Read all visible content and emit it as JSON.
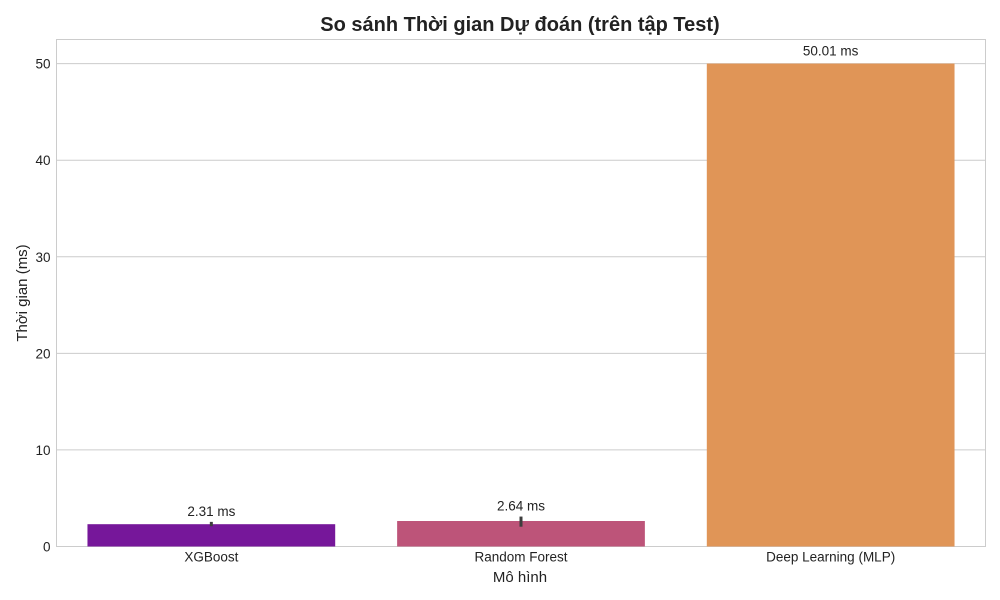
{
  "chart_data": {
    "type": "bar",
    "title": "So sánh Thời gian Dự đoán (trên tập Test)",
    "xlabel": "Mô hình",
    "ylabel": "Thời gian (ms)",
    "categories": [
      "XGBoost",
      "Random Forest",
      "Deep Learning (MLP)"
    ],
    "values": [
      2.31,
      2.64,
      50.01
    ],
    "data_labels": [
      "2.31 ms",
      "2.64 ms",
      "50.01 ms"
    ],
    "error_bars": [
      [
        2.1,
        2.55
      ],
      [
        2.05,
        3.1
      ],
      null
    ],
    "colors": [
      "#76179a",
      "#bd5479",
      "#e09557"
    ],
    "ylim": [
      0,
      52.5
    ],
    "yticks": [
      0,
      10,
      20,
      30,
      40,
      50
    ],
    "ytick_labels": [
      "0",
      "10",
      "20",
      "30",
      "40",
      "50"
    ],
    "grid": "horizontal"
  }
}
